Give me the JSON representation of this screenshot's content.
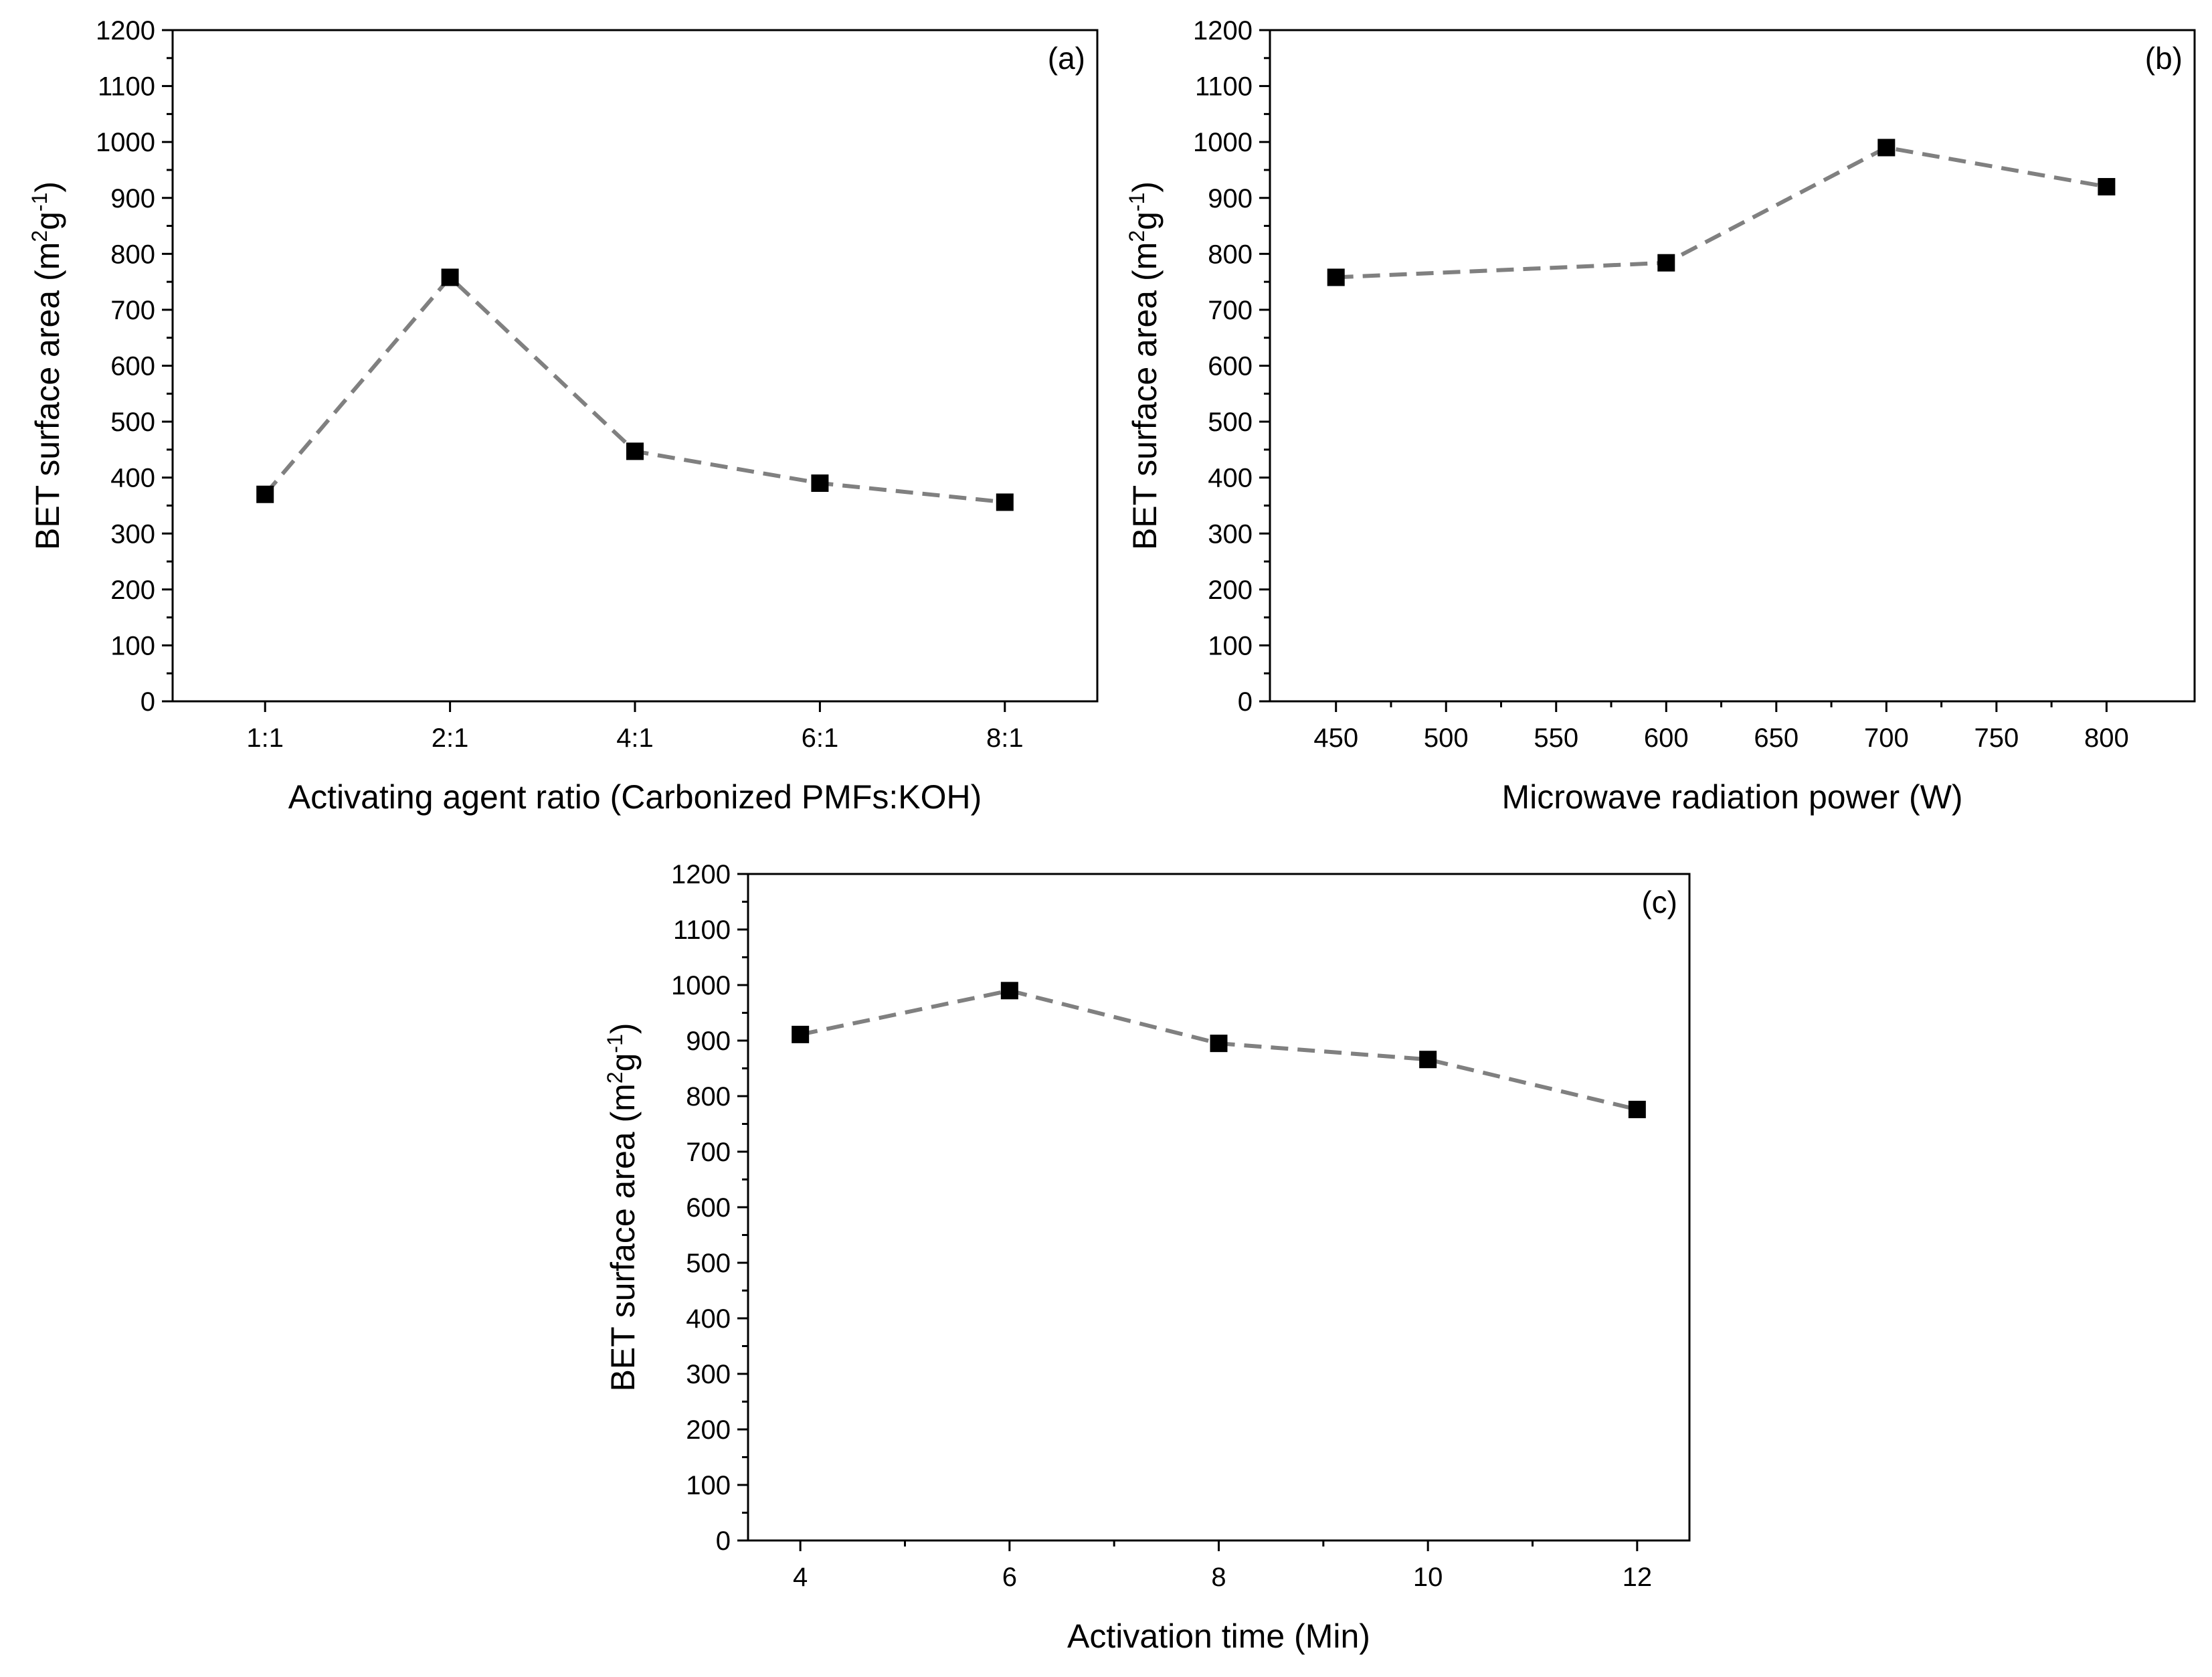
{
  "chart_data": [
    {
      "type": "line",
      "panel": "(a)",
      "xlabel": "Activating agent ratio (Carbonized PMFs:KOH)",
      "ylabel_main": "BET surface area (m",
      "ylabel_sup1": "2",
      "ylabel_mid": "g",
      "ylabel_sup2": "-1",
      "ylabel_end": ")",
      "categories": [
        "1:1",
        "2:1",
        "4:1",
        "6:1",
        "8:1"
      ],
      "values": [
        370,
        758,
        447,
        390,
        356
      ],
      "ylim": [
        0,
        1200
      ],
      "yticks": [
        0,
        100,
        200,
        300,
        400,
        500,
        600,
        700,
        800,
        900,
        1000,
        1100,
        1200
      ],
      "series_color": "#808080",
      "marker_color": "#000000"
    },
    {
      "type": "line",
      "panel": "(b)",
      "xlabel": "Microwave radiation power (W)",
      "ylabel_main": "BET surface area (m",
      "ylabel_sup1": "2",
      "ylabel_mid": "g",
      "ylabel_sup2": "-1",
      "ylabel_end": ")",
      "x": [
        450,
        600,
        700,
        800
      ],
      "values": [
        758,
        784,
        990,
        920
      ],
      "xlim": [
        420,
        840
      ],
      "xticks": [
        450,
        500,
        550,
        600,
        650,
        700,
        750,
        800
      ],
      "ylim": [
        0,
        1200
      ],
      "yticks": [
        0,
        100,
        200,
        300,
        400,
        500,
        600,
        700,
        800,
        900,
        1000,
        1100,
        1200
      ],
      "series_color": "#808080",
      "marker_color": "#000000"
    },
    {
      "type": "line",
      "panel": "(c)",
      "xlabel": "Activation time (Min)",
      "ylabel_main": "BET surface area (m",
      "ylabel_sup1": "2",
      "ylabel_mid": "g",
      "ylabel_sup2": "-1",
      "ylabel_end": ")",
      "x": [
        4,
        6,
        8,
        10,
        12
      ],
      "values": [
        911,
        990,
        895,
        866,
        776
      ],
      "xlim": [
        3.5,
        12.5
      ],
      "xticks": [
        4,
        6,
        8,
        10,
        12
      ],
      "ylim": [
        0,
        1200
      ],
      "yticks": [
        0,
        100,
        200,
        300,
        400,
        500,
        600,
        700,
        800,
        900,
        1000,
        1100,
        1200
      ],
      "series_color": "#808080",
      "marker_color": "#000000"
    }
  ]
}
